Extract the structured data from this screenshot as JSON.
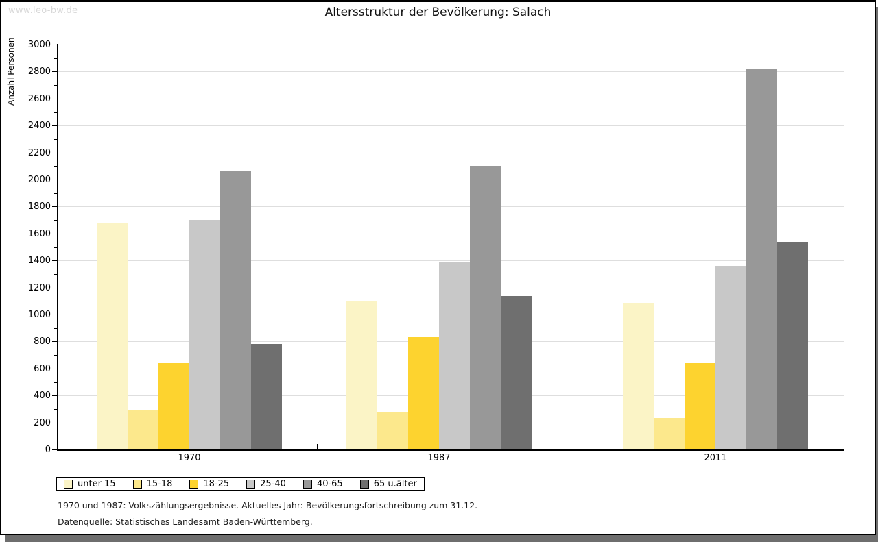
{
  "watermark": "www.leo-bw.de",
  "title": "Altersstruktur der Bevölkerung: Salach",
  "footer": {
    "line1": "1970 und 1987: Volkszählungsergebnisse. Aktuelles Jahr: Bevölkerungsfortschreibung zum 31.12.",
    "line2": "Datenquelle: Statistisches Landesamt Baden-Württemberg."
  },
  "chart_data": {
    "type": "bar",
    "title": "Altersstruktur der Bevölkerung: Salach",
    "ylabel": "Anzahl Personen",
    "xlabel": "",
    "ylim": [
      0,
      3000
    ],
    "ytick_step": 200,
    "minor_tick_step": 100,
    "grid": true,
    "legend_position": "bottom",
    "categories": [
      "1970",
      "1987",
      "2011"
    ],
    "series": [
      {
        "name": "unter 15",
        "color": "#FBF4C6",
        "values": [
          1675,
          1095,
          1085
        ]
      },
      {
        "name": "15-18",
        "color": "#FCE88C",
        "values": [
          295,
          275,
          235
        ]
      },
      {
        "name": "18-25",
        "color": "#FDD32F",
        "values": [
          640,
          830,
          640
        ]
      },
      {
        "name": "25-40",
        "color": "#C8C8C8",
        "values": [
          1700,
          1385,
          1360
        ]
      },
      {
        "name": "40-65",
        "color": "#989898",
        "values": [
          2065,
          2100,
          2820
        ]
      },
      {
        "name": "65 u.älter",
        "color": "#6F6F6F",
        "values": [
          780,
          1135,
          1540
        ]
      }
    ]
  }
}
